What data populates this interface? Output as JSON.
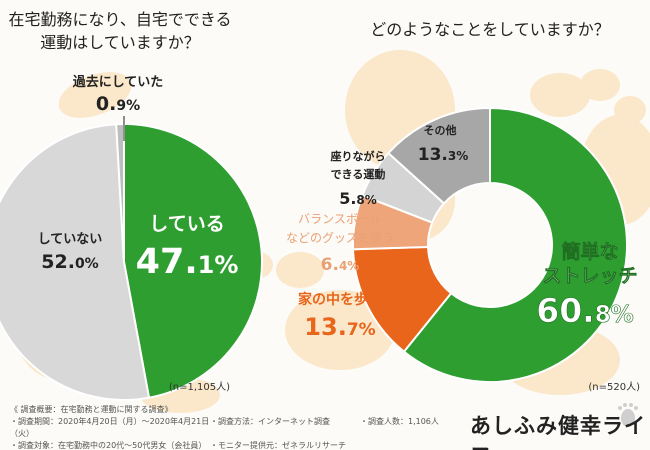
{
  "chart_data": [
    {
      "type": "pie",
      "title_line1": "在宅勤務になり、自宅でできる",
      "title_line2": "運動はしていますか？",
      "n_label": "(n=1,105人)",
      "slices": [
        {
          "label": "している",
          "value": 47.1,
          "value_int": "47.",
          "value_dec": "1%",
          "color": "#2e9e30"
        },
        {
          "label": "していない",
          "value": 52.0,
          "value_int": "52.",
          "value_dec": "0%",
          "color": "#d8d8d8"
        },
        {
          "label": "過去にしていた",
          "value": 0.9,
          "value_int": "0.",
          "value_dec": "9%",
          "color": "#bdbdbd"
        }
      ]
    },
    {
      "type": "pie",
      "title": "どのようなことをしていますか？",
      "n_label": "(n=520人)",
      "slices": [
        {
          "label": "簡単な",
          "label2": "ストレッチ",
          "value": 60.8,
          "value_int": "60.",
          "value_dec": "8%",
          "color": "#2e9e30"
        },
        {
          "label": "家の中を歩く",
          "value": 13.7,
          "value_int": "13.",
          "value_dec": "7%",
          "color": "#e8651b"
        },
        {
          "label": "バランスボール",
          "label2": "などのグッズを使う",
          "value": 6.4,
          "value_int": "6.",
          "value_dec": "4%",
          "color": "#eda579"
        },
        {
          "label": "座りながら",
          "label2": "できる運動",
          "value": 5.8,
          "value_int": "5.",
          "value_dec": "8%",
          "color": "#d4d4d4"
        },
        {
          "label": "その他",
          "value": 13.3,
          "value_int": "13.",
          "value_dec": "3%",
          "color": "#a7a7a7"
        }
      ]
    }
  ],
  "footer": {
    "heading": "《 調査概要：在宅勤務と運動に関する調査》",
    "period": "・調査期間：2020年4月20日（月）～2020年4月21日（火）",
    "method": "・調査方法：インターネット調査",
    "count": "・調査人数：1,106人",
    "target": "・調査対象：在宅勤務中の20代～50代男女（会社員）",
    "provider": "・モニター提供元：ゼネラルリサーチ"
  },
  "brand": "あしふみ健幸ライフ",
  "colors": {
    "background": "#fcfbf7",
    "footprint": "#fbe7c9",
    "green": "#2e9e30",
    "orange": "#e8651b"
  }
}
